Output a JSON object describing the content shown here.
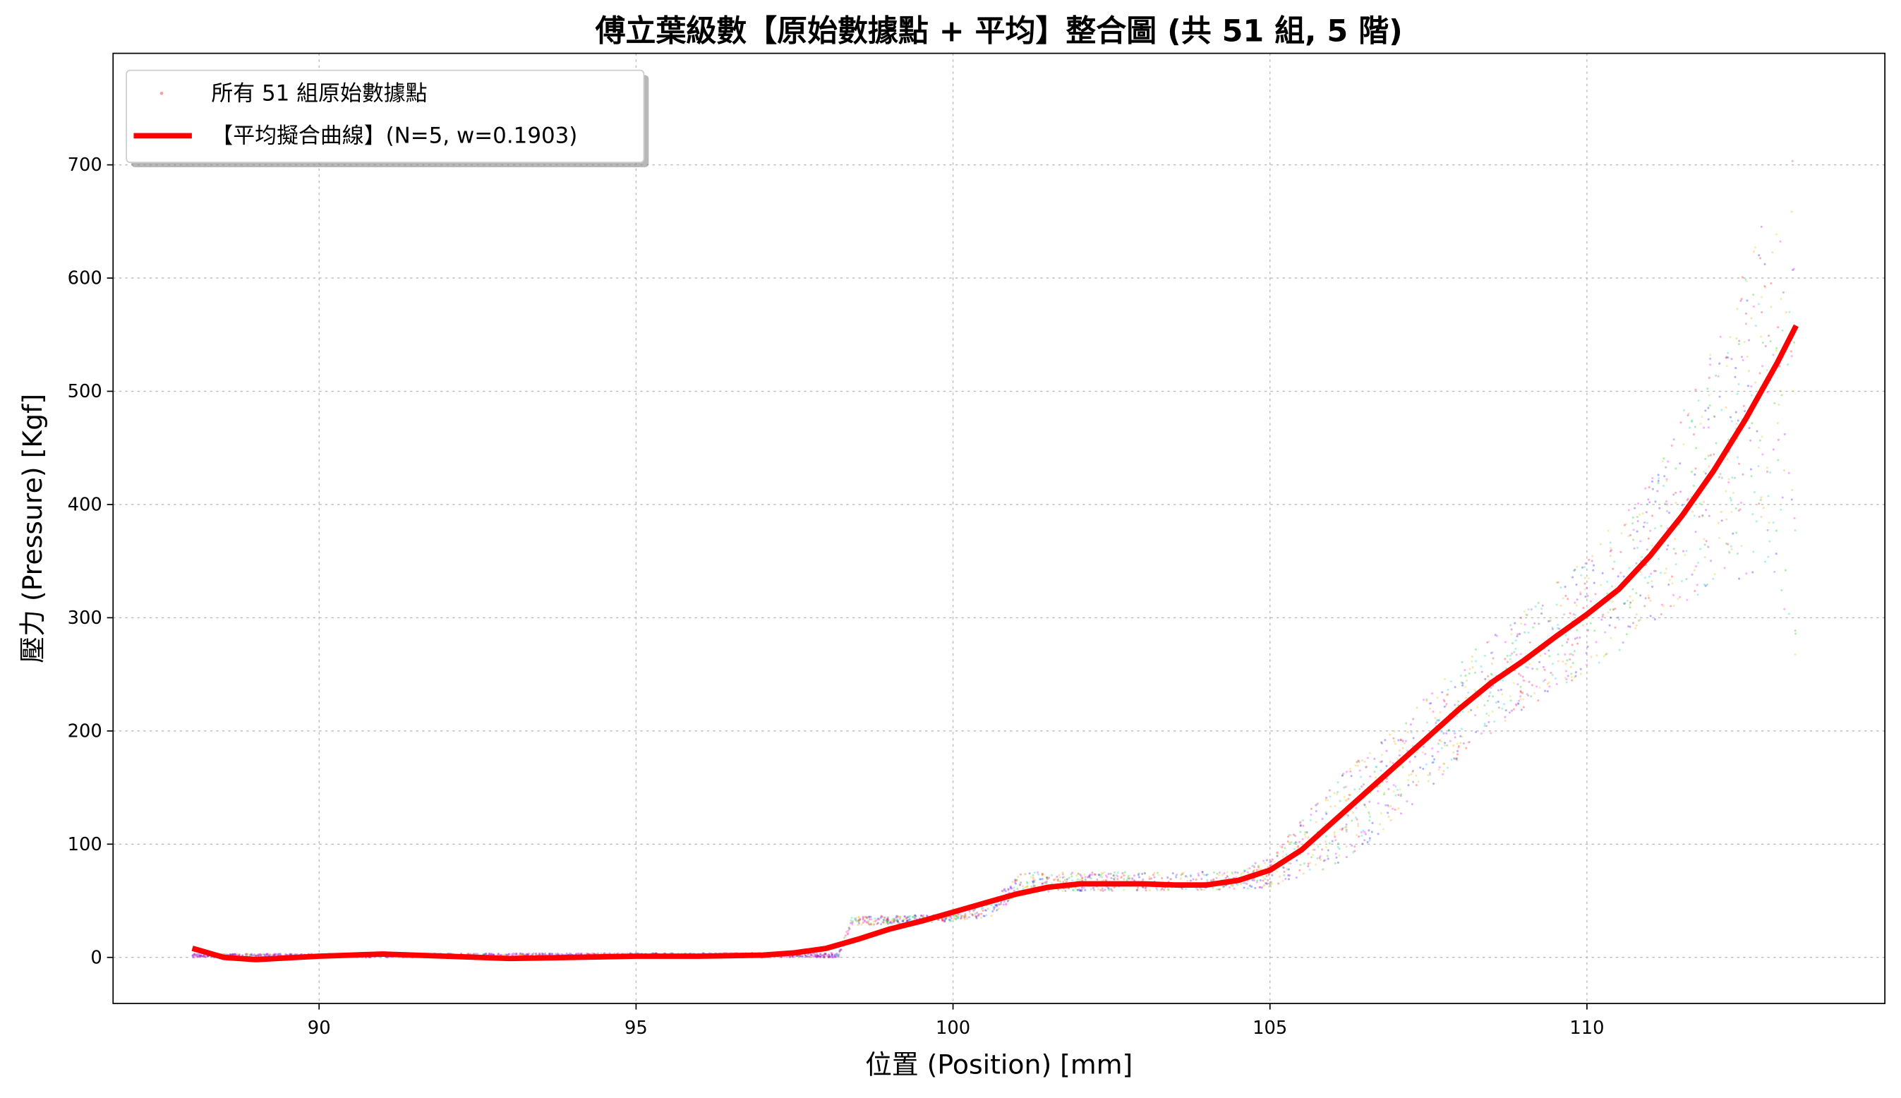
{
  "chart_data": {
    "type": "scatter",
    "title": "傅立葉級數【原始數據點 + 平均】整合圖 (共 51 組, 5 階)",
    "xlabel": "位置 (Position) [mm]",
    "ylabel": "壓力 (Pressure) [Kgf]",
    "xlim": [
      86.75,
      114.7
    ],
    "ylim": [
      -40.7,
      798.5
    ],
    "xticks": [
      90,
      95,
      100,
      105,
      110
    ],
    "yticks": [
      0,
      100,
      200,
      300,
      400,
      500,
      600,
      700
    ],
    "grid": true,
    "legend_position": "top-left",
    "legend": [
      {
        "label": "所有 51 組原始數據點",
        "kind": "points",
        "color": "#ff9999"
      },
      {
        "label": "【平均擬合曲線】(N=5, w=0.1903)",
        "kind": "line",
        "color": "#ff0000"
      }
    ],
    "raw_point_colors": [
      "#ff0000",
      "#00cc00",
      "#0000ff",
      "#9900cc",
      "#ff9900",
      "#00cccc",
      "#ff00ff",
      "#cccc00"
    ],
    "raw_point_envelope": {
      "x": [
        88,
        98.2,
        98.4,
        100,
        100.6,
        101.1,
        104.5,
        105,
        106,
        107,
        108,
        109,
        110,
        111,
        112,
        113,
        113.3
      ],
      "low": [
        0,
        0,
        28,
        32,
        36,
        58,
        60,
        62,
        80,
        120,
        175,
        220,
        250,
        290,
        330,
        340,
        250
      ],
      "high": [
        3,
        4,
        36,
        38,
        50,
        75,
        76,
        90,
        155,
        205,
        262,
        305,
        355,
        420,
        540,
        680,
        720
      ]
    },
    "series": [
      {
        "name": "【平均擬合曲線】(N=5, w=0.1903)",
        "x": [
          88,
          88.5,
          89,
          90,
          91,
          92,
          93,
          94,
          95,
          96,
          97,
          97.5,
          98,
          98.5,
          99,
          99.5,
          100,
          100.5,
          101,
          101.5,
          102,
          103,
          103.5,
          104,
          104.5,
          105,
          105.5,
          106,
          106.5,
          107,
          107.5,
          108,
          108.5,
          109,
          109.5,
          110,
          110.5,
          111,
          111.5,
          112,
          112.5,
          113,
          113.3
        ],
        "y": [
          8,
          0,
          -2,
          1,
          3,
          1,
          -1,
          0,
          1,
          1,
          2,
          4,
          8,
          16,
          25,
          32,
          40,
          48,
          56,
          62,
          65,
          65,
          64,
          64,
          68,
          77,
          95,
          120,
          145,
          170,
          195,
          220,
          243,
          262,
          283,
          303,
          325,
          355,
          390,
          430,
          475,
          525,
          558
        ]
      }
    ]
  }
}
